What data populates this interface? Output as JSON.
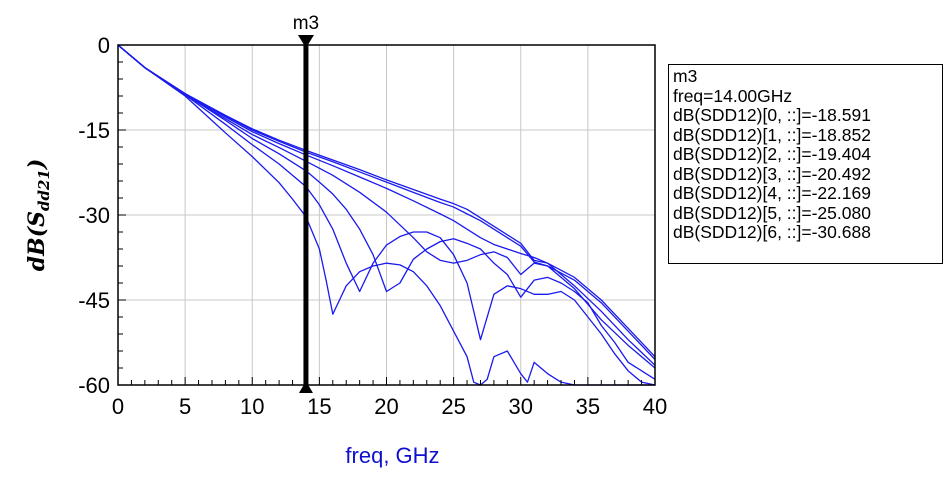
{
  "chart_data": {
    "type": "line",
    "xlabel": "freq, GHz",
    "ylabel": "dB(Sdd21)",
    "ylabel_parts": {
      "prefix": "dB(",
      "symbol": "S",
      "subscript": "dd21",
      "suffix": ")"
    },
    "xlim": [
      0,
      40
    ],
    "ylim": [
      -60,
      0
    ],
    "x_ticks": [
      0,
      5,
      10,
      15,
      20,
      25,
      30,
      35,
      40
    ],
    "x_tick_labels": [
      "0",
      "5",
      "10",
      "15",
      "20",
      "25",
      "30",
      "35",
      "40"
    ],
    "y_ticks": [
      0,
      -15,
      -30,
      -45,
      -60
    ],
    "y_tick_labels": [
      "0",
      "-15",
      "-30",
      "-45",
      "-60"
    ],
    "grid": true,
    "line_color": "#1a1aee",
    "marker": {
      "name": "m3",
      "x": 14.0,
      "readout": [
        "m3",
        "freq=14.00GHz",
        "dB(SDD12)[0, ::]=-18.591",
        "dB(SDD12)[1, ::]=-18.852",
        "dB(SDD12)[2, ::]=-19.404",
        "dB(SDD12)[3, ::]=-20.492",
        "dB(SDD12)[4, ::]=-22.169",
        "dB(SDD12)[5, ::]=-25.080",
        "dB(SDD12)[6, ::]=-30.688"
      ]
    },
    "series": [
      {
        "x": [
          0,
          2,
          5,
          8,
          10,
          12,
          14,
          16,
          18,
          20,
          22,
          24,
          25,
          26,
          27,
          28,
          29,
          30,
          31,
          32,
          34,
          36,
          38,
          40
        ],
        "y": [
          0,
          -4,
          -8.6,
          -12.4,
          -14.8,
          -16.8,
          -18.6,
          -20.3,
          -22,
          -23.8,
          -25.5,
          -27.2,
          -28,
          -29,
          -30.5,
          -32,
          -33.5,
          -35,
          -38,
          -38.5,
          -41,
          -45,
          -50,
          -55
        ]
      },
      {
        "x": [
          0,
          2,
          5,
          8,
          10,
          12,
          14,
          16,
          18,
          20,
          22,
          24,
          25,
          26,
          27,
          28,
          29,
          30,
          31,
          32,
          34,
          36,
          38,
          40
        ],
        "y": [
          0,
          -4,
          -8.6,
          -12.5,
          -15,
          -17,
          -18.9,
          -20.6,
          -22.4,
          -24.2,
          -26,
          -27.8,
          -28.6,
          -29.8,
          -31,
          -32.5,
          -34,
          -35.5,
          -38.3,
          -39,
          -41.5,
          -45.5,
          -50.5,
          -55.5
        ]
      },
      {
        "x": [
          0,
          2,
          5,
          8,
          10,
          12,
          14,
          16,
          18,
          20,
          22,
          24,
          25,
          26,
          27,
          28,
          29,
          30,
          31,
          32,
          34,
          36,
          38,
          40
        ],
        "y": [
          0,
          -4,
          -8.6,
          -12.7,
          -15.3,
          -17.4,
          -19.4,
          -21.3,
          -23.3,
          -25.3,
          -27.5,
          -29.8,
          -31,
          -32.5,
          -34,
          -35.2,
          -36,
          -36.8,
          -37.5,
          -38.5,
          -42.5,
          -47,
          -52,
          -56.5
        ]
      },
      {
        "x": [
          0,
          2,
          5,
          8,
          10,
          12,
          14,
          16,
          18,
          20,
          22,
          23,
          24,
          25,
          26,
          27,
          28,
          29,
          30,
          31,
          32,
          34,
          36,
          38,
          40
        ],
        "y": [
          0,
          -4,
          -8.7,
          -13,
          -15.8,
          -18.1,
          -20.5,
          -23,
          -26,
          -29.5,
          -34,
          -36.5,
          -38,
          -38.5,
          -38,
          -37,
          -36.5,
          -37.5,
          -40.5,
          -38.5,
          -39,
          -43,
          -48.5,
          -53,
          -57
        ]
      },
      {
        "x": [
          0,
          2,
          5,
          8,
          10,
          12,
          14,
          15,
          16,
          17,
          18,
          19,
          20,
          21,
          22,
          23,
          24,
          25,
          26,
          27,
          28,
          29,
          30,
          31,
          32,
          33,
          34,
          35,
          36,
          37,
          38,
          40
        ],
        "y": [
          0,
          -4,
          -8.7,
          -13.3,
          -16.5,
          -19.2,
          -22.2,
          -24.2,
          -26.3,
          -29,
          -32.5,
          -37,
          -43.5,
          -42,
          -37.8,
          -36,
          -34.7,
          -34.2,
          -35,
          -36,
          -38.5,
          -40.5,
          -44.5,
          -41.5,
          -41,
          -42,
          -43.5,
          -45.5,
          -49.5,
          -52.5,
          -56,
          -59
        ]
      },
      {
        "x": [
          0,
          2,
          5,
          8,
          10,
          12,
          14,
          15,
          16,
          17,
          18,
          19,
          20,
          21,
          22,
          23,
          24,
          25,
          26,
          27,
          28,
          29,
          30,
          31,
          32,
          33,
          34,
          35,
          36,
          37,
          38,
          39,
          40
        ],
        "y": [
          0,
          -4,
          -8.8,
          -14,
          -17.6,
          -21,
          -25,
          -28.2,
          -32.5,
          -38.5,
          -43.5,
          -38.5,
          -35.3,
          -33.8,
          -33,
          -33,
          -34,
          -37,
          -42,
          -52,
          -44,
          -42.5,
          -43,
          -44,
          -44,
          -43.5,
          -45,
          -48,
          -51,
          -54.5,
          -57.5,
          -59.5,
          -60
        ]
      },
      {
        "x": [
          0,
          2,
          5,
          8,
          10,
          12,
          13,
          14,
          15,
          15.5,
          16,
          16.5,
          17,
          18,
          19,
          20,
          21,
          22,
          23,
          24,
          25,
          26,
          26.5,
          27,
          27.5,
          28,
          29,
          30,
          30.5,
          31,
          32,
          33,
          34,
          35,
          36,
          38,
          40
        ],
        "y": [
          0,
          -4,
          -9,
          -15.5,
          -19.7,
          -24.3,
          -27.2,
          -30.3,
          -36,
          -41.5,
          -47.5,
          -45,
          -42.5,
          -40,
          -39,
          -38.5,
          -38.8,
          -40,
          -42.5,
          -46,
          -50.5,
          -55,
          -59.5,
          -60,
          -59,
          -55,
          -54,
          -58,
          -59.5,
          -56,
          -58,
          -59.5,
          -60,
          -60,
          -60,
          -60,
          -60
        ]
      }
    ]
  }
}
